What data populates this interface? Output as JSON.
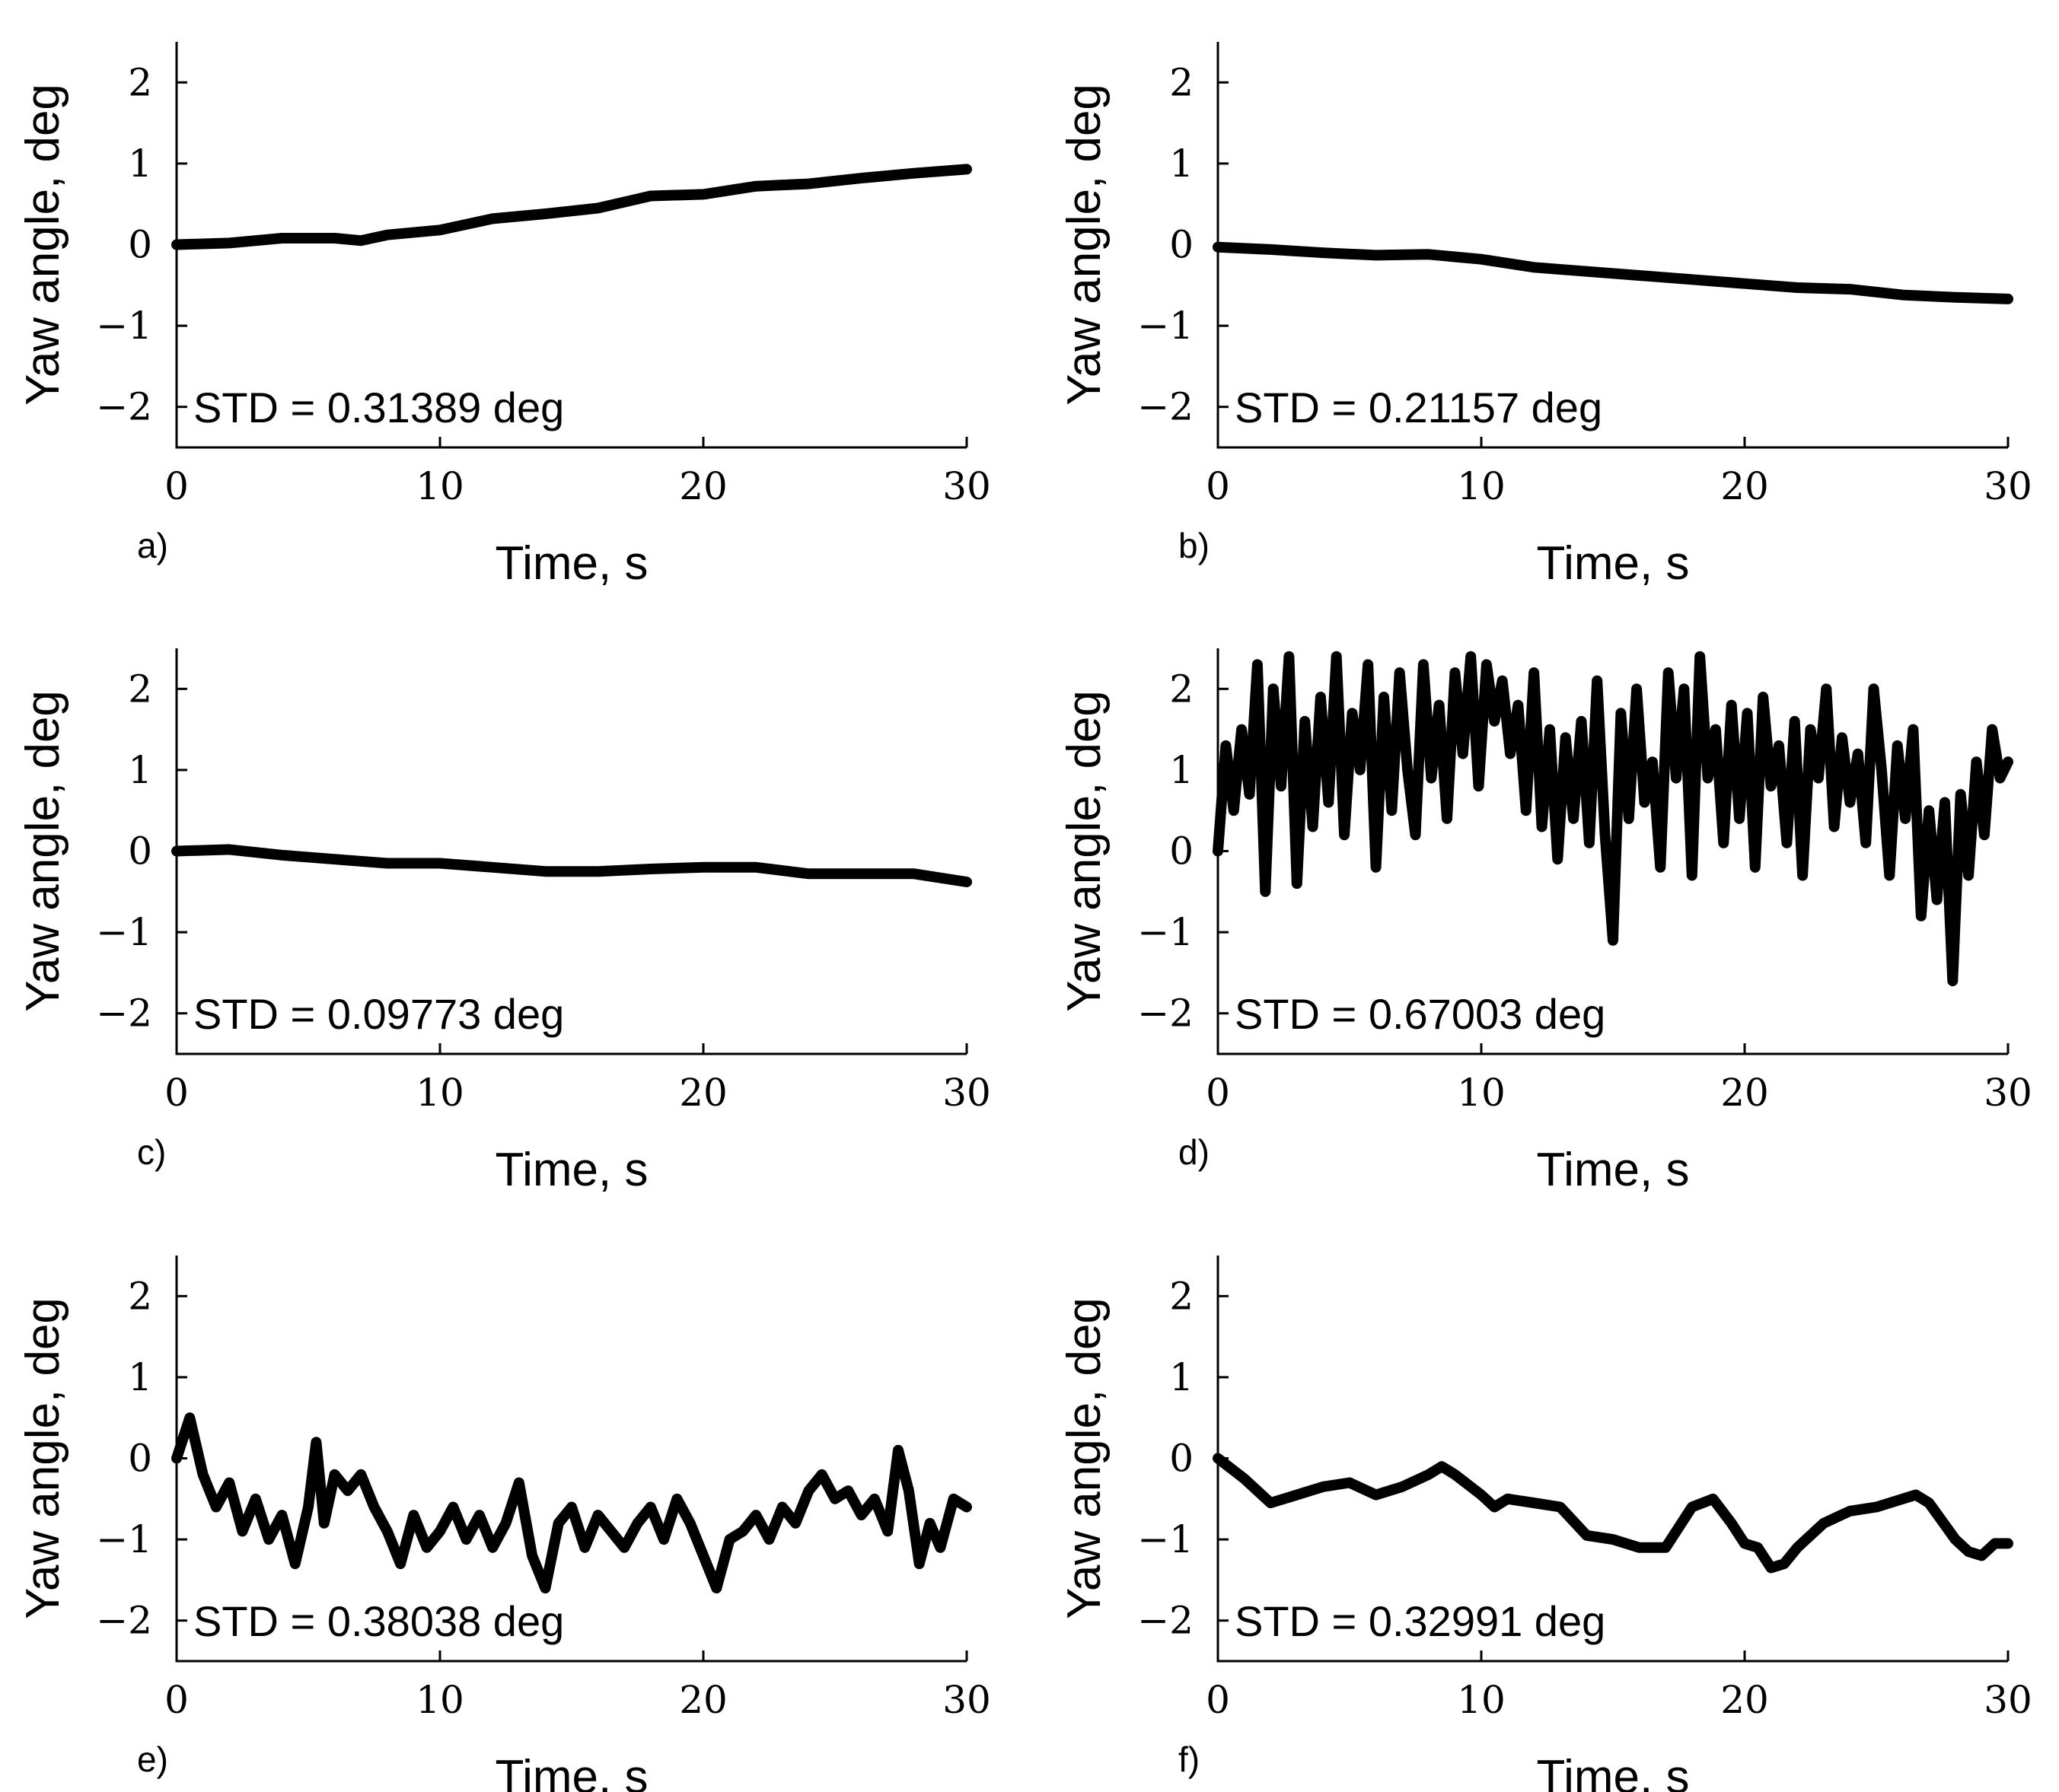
{
  "chart_data": [
    {
      "type": "line",
      "panel_label": "a)",
      "xlabel": "Time, s",
      "ylabel": "Yaw angle, deg",
      "xlim": [
        0,
        30
      ],
      "ylim": [
        -2.5,
        2.5
      ],
      "xticks": [
        "0",
        "10",
        "20",
        "30"
      ],
      "yticks": [
        "2",
        "1",
        "0",
        "−1",
        "−2"
      ],
      "annotation": "STD = 0.31389 deg",
      "x": [
        0,
        2,
        4,
        6,
        7,
        8,
        10,
        12,
        14,
        16,
        18,
        20,
        22,
        24,
        26,
        28,
        30
      ],
      "values": [
        0.0,
        0.02,
        0.08,
        0.08,
        0.05,
        0.12,
        0.18,
        0.32,
        0.38,
        0.45,
        0.6,
        0.62,
        0.72,
        0.75,
        0.82,
        0.88,
        0.93
      ]
    },
    {
      "type": "line",
      "panel_label": "b)",
      "xlabel": "Time, s",
      "ylabel": "Yaw angle, deg",
      "xlim": [
        0,
        30
      ],
      "ylim": [
        -2.5,
        2.5
      ],
      "xticks": [
        "0",
        "10",
        "20",
        "30"
      ],
      "yticks": [
        "2",
        "1",
        "0",
        "−1",
        "−2"
      ],
      "annotation": "STD = 0.21157 deg",
      "x": [
        0,
        2,
        4,
        6,
        8,
        10,
        12,
        14,
        16,
        18,
        20,
        22,
        24,
        26,
        28,
        30
      ],
      "values": [
        -0.03,
        -0.06,
        -0.1,
        -0.13,
        -0.12,
        -0.18,
        -0.28,
        -0.33,
        -0.38,
        -0.43,
        -0.48,
        -0.53,
        -0.55,
        -0.62,
        -0.65,
        -0.67
      ]
    },
    {
      "type": "line",
      "panel_label": "c)",
      "xlabel": "Time, s",
      "ylabel": "Yaw angle, deg",
      "xlim": [
        0,
        30
      ],
      "ylim": [
        -2.5,
        2.5
      ],
      "xticks": [
        "0",
        "10",
        "20",
        "30"
      ],
      "yticks": [
        "2",
        "1",
        "0",
        "−1",
        "−2"
      ],
      "annotation": "STD = 0.09773 deg",
      "x": [
        0,
        2,
        4,
        6,
        8,
        10,
        12,
        14,
        16,
        18,
        20,
        22,
        24,
        26,
        28,
        30
      ],
      "values": [
        0.0,
        0.02,
        -0.05,
        -0.1,
        -0.15,
        -0.15,
        -0.2,
        -0.25,
        -0.25,
        -0.22,
        -0.2,
        -0.2,
        -0.28,
        -0.28,
        -0.28,
        -0.38
      ]
    },
    {
      "type": "line",
      "panel_label": "d)",
      "xlabel": "Time, s",
      "ylabel": "Yaw angle, deg",
      "xlim": [
        0,
        30
      ],
      "ylim": [
        -2.5,
        2.5
      ],
      "xticks": [
        "0",
        "10",
        "20",
        "30"
      ],
      "yticks": [
        "2",
        "1",
        "0",
        "−1",
        "−2"
      ],
      "annotation": "STD = 0.67003 deg",
      "x": [
        0,
        0.3,
        0.6,
        0.9,
        1.2,
        1.5,
        1.8,
        2.1,
        2.4,
        2.7,
        3.0,
        3.3,
        3.6,
        3.9,
        4.2,
        4.5,
        4.8,
        5.1,
        5.4,
        5.7,
        6.0,
        6.3,
        6.6,
        6.9,
        7.2,
        7.5,
        7.8,
        8.1,
        8.4,
        8.7,
        9.0,
        9.3,
        9.6,
        9.9,
        10.2,
        10.5,
        10.8,
        11.1,
        11.4,
        11.7,
        12.0,
        12.3,
        12.6,
        12.9,
        13.2,
        13.5,
        13.8,
        14.1,
        14.4,
        14.7,
        15.0,
        15.3,
        15.6,
        15.9,
        16.2,
        16.5,
        16.8,
        17.1,
        17.4,
        17.7,
        18.0,
        18.3,
        18.6,
        18.9,
        19.2,
        19.5,
        19.8,
        20.1,
        20.4,
        20.7,
        21.0,
        21.3,
        21.6,
        21.9,
        22.2,
        22.5,
        22.8,
        23.1,
        23.4,
        23.7,
        24.0,
        24.3,
        24.6,
        24.9,
        25.2,
        25.5,
        25.8,
        26.1,
        26.4,
        26.7,
        27.0,
        27.3,
        27.6,
        27.9,
        28.2,
        28.5,
        28.8,
        29.1,
        29.4,
        29.7,
        30.0
      ],
      "values": [
        0.0,
        1.3,
        0.5,
        1.5,
        0.7,
        2.3,
        -0.5,
        2.0,
        0.8,
        2.4,
        -0.4,
        1.6,
        0.3,
        1.9,
        0.6,
        2.4,
        0.2,
        1.7,
        1.0,
        2.3,
        -0.2,
        1.9,
        0.5,
        2.2,
        1.0,
        0.2,
        2.3,
        0.9,
        1.8,
        0.4,
        2.2,
        1.2,
        2.4,
        0.8,
        2.3,
        1.6,
        2.1,
        1.2,
        1.8,
        0.5,
        2.2,
        0.3,
        1.5,
        -0.1,
        1.4,
        0.4,
        1.6,
        0.1,
        2.1,
        0.2,
        -1.1,
        1.7,
        0.4,
        2.0,
        0.6,
        1.1,
        -0.2,
        2.2,
        0.9,
        2.0,
        -0.3,
        2.4,
        0.9,
        1.5,
        0.1,
        1.8,
        0.4,
        1.7,
        -0.2,
        1.9,
        0.8,
        1.3,
        0.1,
        1.6,
        -0.3,
        1.5,
        0.9,
        2.0,
        0.3,
        1.4,
        0.6,
        1.2,
        0.1,
        2.0,
        1.0,
        -0.3,
        1.3,
        0.4,
        1.5,
        -0.8,
        0.5,
        -0.6,
        0.6,
        -1.6,
        0.7,
        -0.3,
        1.1,
        0.2,
        1.5,
        0.9,
        1.1
      ]
    },
    {
      "type": "line",
      "panel_label": "e)",
      "xlabel": "Time, s",
      "ylabel": "Yaw angle, deg",
      "xlim": [
        0,
        30
      ],
      "ylim": [
        -2.5,
        2.5
      ],
      "xticks": [
        "0",
        "10",
        "20",
        "30"
      ],
      "yticks": [
        "2",
        "1",
        "0",
        "−1",
        "−2"
      ],
      "annotation": "STD = 0.38038 deg",
      "x": [
        0,
        0.5,
        1.0,
        1.5,
        2.0,
        2.5,
        3.0,
        3.5,
        4.0,
        4.5,
        5.0,
        5.3,
        5.6,
        6.0,
        6.5,
        7.0,
        7.5,
        8.0,
        8.5,
        9.0,
        9.5,
        10.0,
        10.5,
        11.0,
        11.5,
        12.0,
        12.5,
        13.0,
        13.5,
        14.0,
        14.5,
        15.0,
        15.5,
        16.0,
        16.5,
        17.0,
        17.5,
        18.0,
        18.5,
        19.0,
        19.5,
        20.0,
        20.5,
        21.0,
        21.5,
        22.0,
        22.5,
        23.0,
        23.5,
        24.0,
        24.5,
        25.0,
        25.5,
        26.0,
        26.5,
        27.0,
        27.4,
        27.8,
        28.2,
        28.6,
        29.0,
        29.5,
        30.0
      ],
      "values": [
        0.0,
        0.5,
        -0.2,
        -0.6,
        -0.3,
        -0.9,
        -0.5,
        -1.0,
        -0.7,
        -1.3,
        -0.6,
        0.2,
        -0.8,
        -0.2,
        -0.4,
        -0.2,
        -0.6,
        -0.9,
        -1.3,
        -0.7,
        -1.1,
        -0.9,
        -0.6,
        -1.0,
        -0.7,
        -1.1,
        -0.8,
        -0.3,
        -1.2,
        -1.6,
        -0.8,
        -0.6,
        -1.1,
        -0.7,
        -0.9,
        -1.1,
        -0.8,
        -0.6,
        -1.0,
        -0.5,
        -0.8,
        -1.2,
        -1.6,
        -1.0,
        -0.9,
        -0.7,
        -1.0,
        -0.6,
        -0.8,
        -0.4,
        -0.2,
        -0.5,
        -0.4,
        -0.7,
        -0.5,
        -0.9,
        0.1,
        -0.4,
        -1.3,
        -0.8,
        -1.1,
        -0.5,
        -0.6
      ]
    },
    {
      "type": "line",
      "panel_label": "f)",
      "xlabel": "Time, s",
      "ylabel": "Yaw angle, deg",
      "xlim": [
        0,
        30
      ],
      "ylim": [
        -2.5,
        2.5
      ],
      "xticks": [
        "0",
        "10",
        "20",
        "30"
      ],
      "yticks": [
        "2",
        "1",
        "0",
        "−1",
        "−2"
      ],
      "annotation": "STD = 0.32991 deg",
      "x": [
        0,
        1,
        2,
        2.5,
        3,
        4,
        5,
        6,
        7,
        8,
        8.5,
        9,
        10,
        10.5,
        11,
        12,
        13,
        14,
        15,
        16,
        17,
        18,
        18.8,
        19.5,
        20,
        20.5,
        21,
        21.5,
        22,
        23,
        24,
        25,
        26,
        26.5,
        27,
        28,
        28.5,
        29,
        29.5,
        30
      ],
      "values": [
        0.0,
        -0.25,
        -0.55,
        -0.5,
        -0.45,
        -0.35,
        -0.3,
        -0.45,
        -0.35,
        -0.2,
        -0.1,
        -0.2,
        -0.45,
        -0.6,
        -0.5,
        -0.55,
        -0.6,
        -0.95,
        -1.0,
        -1.1,
        -1.1,
        -0.6,
        -0.5,
        -0.8,
        -1.05,
        -1.1,
        -1.35,
        -1.3,
        -1.1,
        -0.8,
        -0.65,
        -0.6,
        -0.5,
        -0.45,
        -0.55,
        -1.0,
        -1.15,
        -1.2,
        -1.05,
        -1.05
      ]
    }
  ]
}
